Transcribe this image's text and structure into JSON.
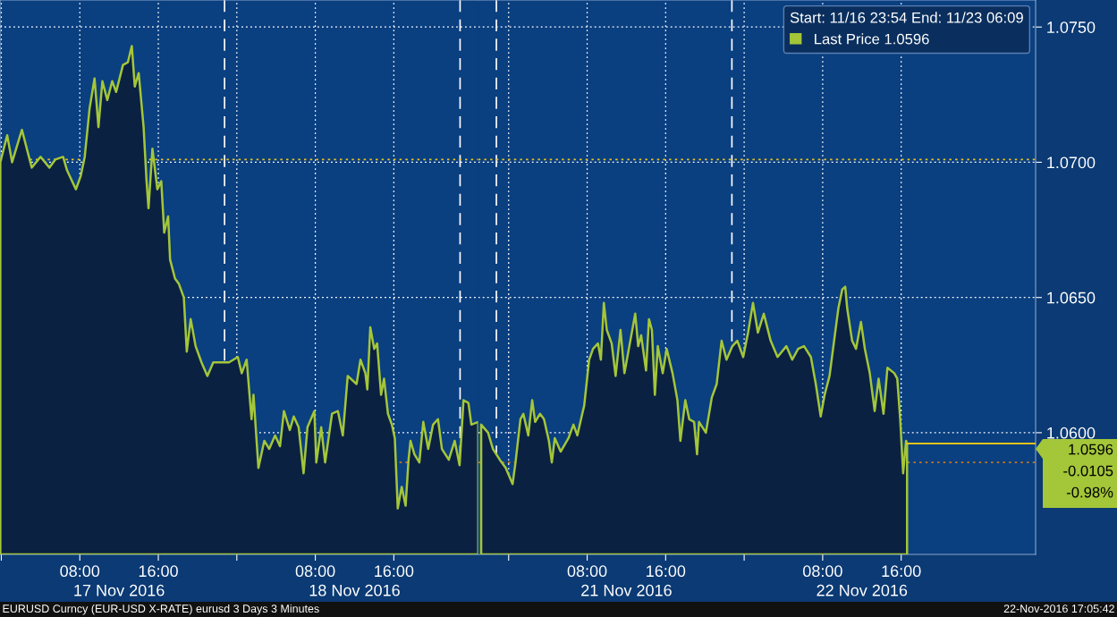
{
  "chart_data": [
    {
      "type": "area",
      "tick_labels": "x",
      "annotations": [
        "EURUSD Curncy (EUR-USD X-RATE) eurusd 3 Days 3 Minutes"
      ],
      "series": [
        {
          "color": "#a4c639",
          "x": [
            "2016-11-16T23:54",
            "2016-11-17T00:36",
            "2016-11-17T01:06",
            "2016-11-17T02:06",
            "2016-11-17T03:06",
            "2016-11-17T04:00",
            "2016-11-17T04:54",
            "2016-11-17T05:30",
            "2016-11-17T06:18",
            "2016-11-17T06:42",
            "2016-11-17T07:36",
            "2016-11-17T08:06",
            "2016-11-17T08:30",
            "2016-11-17T09:00",
            "2016-11-17T09:30",
            "2016-11-17T09:54",
            "2016-11-17T10:18",
            "2016-11-17T10:48",
            "2016-11-17T11:18",
            "2016-11-17T11:42",
            "2016-11-17T12:24",
            "2016-11-17T12:54",
            "2016-11-17T13:18",
            "2016-11-17T13:36",
            "2016-11-17T14:00",
            "2016-11-17T14:30",
            "2016-11-17T14:48",
            "2016-11-17T15:00",
            "2016-11-17T15:24",
            "2016-11-17T15:54",
            "2016-11-17T16:18",
            "2016-11-17T16:36",
            "2016-11-17T17:00",
            "2016-11-17T17:12",
            "2016-11-17T17:42",
            "2016-11-17T18:06",
            "2016-11-17T18:36",
            "2016-11-17T18:54",
            "2016-11-17T19:18",
            "2016-11-17T19:48",
            "2016-11-17T20:24",
            "2016-11-17T21:00",
            "2016-11-17T21:36",
            "2016-11-17T22:18",
            "2016-11-17T23:12",
            "2016-11-18T00:06",
            "2016-11-18T00:30",
            "2016-11-18T01:00",
            "2016-11-18T01:30",
            "2016-11-18T01:42",
            "2016-11-18T02:12",
            "2016-11-18T02:48",
            "2016-11-18T03:18",
            "2016-11-18T03:54",
            "2016-11-18T04:24",
            "2016-11-18T04:48",
            "2016-11-18T05:24",
            "2016-11-18T05:48",
            "2016-11-18T06:18",
            "2016-11-18T06:48",
            "2016-11-18T07:12",
            "2016-11-18T07:54",
            "2016-11-18T08:06",
            "2016-11-18T08:36",
            "2016-11-18T09:00",
            "2016-11-18T09:42",
            "2016-11-18T10:18",
            "2016-11-18T10:48",
            "2016-11-18T11:18",
            "2016-11-18T12:12",
            "2016-11-18T12:36",
            "2016-11-18T13:06",
            "2016-11-18T13:18",
            "2016-11-18T13:36",
            "2016-11-18T14:00",
            "2016-11-18T14:18",
            "2016-11-18T14:42",
            "2016-11-18T15:00",
            "2016-11-18T15:24",
            "2016-11-18T15:48",
            "2016-11-18T16:06",
            "2016-11-18T16:24",
            "2016-11-18T16:48",
            "2016-11-18T17:12",
            "2016-11-18T17:30",
            "2016-11-18T17:42",
            "2016-11-18T18:06",
            "2016-11-18T18:36",
            "2016-11-18T19:00",
            "2016-11-18T19:30",
            "2016-11-18T20:00",
            "2016-11-18T20:30",
            "2016-11-18T20:54",
            "2016-11-18T21:36",
            "2016-11-18T22:12",
            "2016-11-18T22:42",
            "2016-11-18T23:06",
            "2016-11-18T23:36",
            "2016-11-18T23:54",
            "2016-11-19T00:36"
          ],
          "values": [
            1.07,
            1.071,
            1.07,
            1.0712,
            1.0698,
            1.0702,
            1.0698,
            1.0701,
            1.0702,
            1.0697,
            1.069,
            1.0695,
            1.0702,
            1.072,
            1.0731,
            1.0713,
            1.073,
            1.0723,
            1.073,
            1.0726,
            1.0736,
            1.0737,
            1.0743,
            1.0728,
            1.0733,
            1.0713,
            1.0693,
            1.0683,
            1.0705,
            1.069,
            1.0693,
            1.0674,
            1.068,
            1.0664,
            1.0657,
            1.0655,
            1.065,
            1.063,
            1.0642,
            1.0632,
            1.0626,
            1.0621,
            1.0626,
            1.0626,
            1.0626,
            1.0628,
            1.0622,
            1.0627,
            1.0605,
            1.0614,
            1.0587,
            1.0597,
            1.0594,
            1.0599,
            1.0595,
            1.0608,
            1.0601,
            1.0606,
            1.0602,
            1.0585,
            1.0602,
            1.0608,
            1.0589,
            1.0602,
            1.0589,
            1.0607,
            1.0608,
            1.0599,
            1.0621,
            1.0618,
            1.0627,
            1.0622,
            1.0616,
            1.0639,
            1.0631,
            1.0633,
            1.0614,
            1.062,
            1.0607,
            1.0603,
            1.0598,
            1.0572,
            1.058,
            1.0573,
            1.059,
            1.0597,
            1.0592,
            1.0589,
            1.0604,
            1.0594,
            1.0603,
            1.0605,
            1.0594,
            1.059,
            1.0597,
            1.0588,
            1.0612,
            1.0611,
            1.0603,
            1.0604
          ]
        }
      ],
      "xlim": [
        "2016-11-16T23:52",
        "2016-11-19T00:36"
      ],
      "ylim": [
        1.0555,
        1.076
      ],
      "xticks": [
        {
          "value": "2016-11-17T00:00",
          "label": null
        },
        {
          "value": "2016-11-17T08:00",
          "label": "08:00"
        },
        {
          "value": "2016-11-17T16:00",
          "label": "16:00"
        },
        {
          "value": "2016-11-18T00:00",
          "label": null
        },
        {
          "value": "2016-11-18T08:00",
          "label": "08:00"
        },
        {
          "value": "2016-11-18T16:00",
          "label": "16:00"
        }
      ],
      "x2lim": [
        "2016-11-16T23:52",
        "2016-11-19T00:36"
      ],
      "x2ticks": [
        {
          "value": "2016-11-17T12:00",
          "label": "17 Nov 2016"
        },
        {
          "value": "2016-11-18T12:00",
          "label": "18 Nov 2016"
        }
      ],
      "yticks": [
        {
          "value": 1.06,
          "label": null
        },
        {
          "value": 1.065,
          "label": null
        },
        {
          "value": 1.07,
          "label": null
        },
        {
          "value": 1.075,
          "label": null
        }
      ],
      "ref_lines": [
        {
          "axis": "x",
          "value": "2016-11-17T22:45",
          "color": "#ffffff",
          "line_style": "dashed"
        },
        {
          "axis": "x",
          "value": "2016-11-18T22:45",
          "color": "#ffffff",
          "line_style": "dashed"
        },
        {
          "axis": "y",
          "value": 1.0701,
          "color": "#e8c21a",
          "line_style": "dotted"
        },
        {
          "axis": "y",
          "value": 1.0589,
          "color": "#c8781e",
          "line_style": "dotted"
        }
      ],
      "grid": true
    },
    {
      "type": "area",
      "legend_title": "Start: 11/16 23:54 End: 11/23 06:09",
      "annotations": [
        "1.0596",
        "-0.0105",
        "-0.98%",
        "22-Nov-2016 17:05:42"
      ],
      "series": [
        {
          "name": "Last Price 1.0596",
          "color": "#a4c639",
          "x": [
            "2016-11-20T21:12",
            "2016-11-20T21:54",
            "2016-11-20T22:24",
            "2016-11-20T23:06",
            "2016-11-20T23:42",
            "2016-11-21T00:24",
            "2016-11-21T00:42",
            "2016-11-21T01:12",
            "2016-11-21T01:30",
            "2016-11-21T02:00",
            "2016-11-21T02:24",
            "2016-11-21T02:42",
            "2016-11-21T03:12",
            "2016-11-21T03:36",
            "2016-11-21T04:06",
            "2016-11-21T04:24",
            "2016-11-21T04:42",
            "2016-11-21T05:18",
            "2016-11-21T06:06",
            "2016-11-21T06:36",
            "2016-11-21T07:00",
            "2016-11-21T07:30",
            "2016-11-21T07:42",
            "2016-11-21T08:12",
            "2016-11-21T08:36",
            "2016-11-21T09:06",
            "2016-11-21T09:24",
            "2016-11-21T09:42",
            "2016-11-21T10:00",
            "2016-11-21T10:30",
            "2016-11-21T10:54",
            "2016-11-21T11:24",
            "2016-11-21T11:48",
            "2016-11-21T12:30",
            "2016-11-21T12:54",
            "2016-11-21T13:12",
            "2016-11-21T13:30",
            "2016-11-21T14:00",
            "2016-11-21T14:18",
            "2016-11-21T14:36",
            "2016-11-21T14:54",
            "2016-11-21T15:12",
            "2016-11-21T15:42",
            "2016-11-21T16:06",
            "2016-11-21T16:42",
            "2016-11-21T17:12",
            "2016-11-21T17:30",
            "2016-11-21T18:00",
            "2016-11-21T18:24",
            "2016-11-21T18:54",
            "2016-11-21T19:12",
            "2016-11-21T19:24",
            "2016-11-21T20:06",
            "2016-11-21T20:42",
            "2016-11-21T21:12",
            "2016-11-21T21:42",
            "2016-11-21T22:12",
            "2016-11-21T22:48",
            "2016-11-21T23:18",
            "2016-11-21T23:54",
            "2016-11-22T00:24",
            "2016-11-22T00:54",
            "2016-11-22T01:24",
            "2016-11-22T02:00",
            "2016-11-22T02:42",
            "2016-11-22T03:24",
            "2016-11-22T04:18",
            "2016-11-22T04:54",
            "2016-11-22T05:30",
            "2016-11-22T06:06",
            "2016-11-22T06:48",
            "2016-11-22T07:18",
            "2016-11-22T07:48",
            "2016-11-22T08:12",
            "2016-11-22T08:42",
            "2016-11-22T09:12",
            "2016-11-22T09:36",
            "2016-11-22T10:00",
            "2016-11-22T10:18",
            "2016-11-22T10:30",
            "2016-11-22T11:00",
            "2016-11-22T11:24",
            "2016-11-22T11:54",
            "2016-11-22T12:18",
            "2016-11-22T12:48",
            "2016-11-22T13:18",
            "2016-11-22T13:42",
            "2016-11-22T14:12",
            "2016-11-22T14:36",
            "2016-11-22T15:18",
            "2016-11-22T15:36",
            "2016-11-22T15:54",
            "2016-11-22T16:12",
            "2016-11-22T16:30",
            "2016-11-22T16:36"
          ],
          "values": [
            1.0603,
            1.06,
            1.0594,
            1.059,
            1.0587,
            1.0581,
            1.0589,
            1.0605,
            1.0607,
            1.0599,
            1.0612,
            1.0604,
            1.0607,
            1.0605,
            1.0597,
            1.0589,
            1.0598,
            1.0593,
            1.0598,
            1.0603,
            1.0599,
            1.0607,
            1.061,
            1.0627,
            1.0631,
            1.0633,
            1.0627,
            1.0648,
            1.0638,
            1.0633,
            1.0621,
            1.0638,
            1.0622,
            1.0636,
            1.0644,
            1.0632,
            1.0636,
            1.0623,
            1.0642,
            1.0638,
            1.0614,
            1.0632,
            1.0622,
            1.0631,
            1.0622,
            1.0612,
            1.0597,
            1.0612,
            1.0605,
            1.0604,
            1.0592,
            1.0604,
            1.06,
            1.0613,
            1.0618,
            1.0634,
            1.0627,
            1.0632,
            1.0634,
            1.0628,
            1.0637,
            1.0648,
            1.0637,
            1.0644,
            1.0634,
            1.0628,
            1.0632,
            1.0627,
            1.0631,
            1.0632,
            1.0628,
            1.0618,
            1.0606,
            1.0614,
            1.0621,
            1.0635,
            1.0646,
            1.0653,
            1.0654,
            1.0646,
            1.0634,
            1.0631,
            1.0641,
            1.0631,
            1.0622,
            1.0608,
            1.062,
            1.0607,
            1.0624,
            1.0622,
            1.062,
            1.0605,
            1.0585,
            1.0597,
            1.0596
          ]
        },
        {
          "type": "line",
          "color": "#e8c21a",
          "x": [
            "2016-11-22T16:36",
            "2016-11-23T05:42"
          ],
          "values": [
            1.0596,
            1.0596
          ]
        }
      ],
      "xlim": [
        "2016-11-20T20:54",
        "2016-11-23T05:42"
      ],
      "ylim": [
        1.0555,
        1.076
      ],
      "xticks": [
        {
          "value": "2016-11-21T00:00",
          "label": null
        },
        {
          "value": "2016-11-21T08:00",
          "label": "08:00"
        },
        {
          "value": "2016-11-21T16:00",
          "label": "16:00"
        },
        {
          "value": "2016-11-22T00:00",
          "label": null
        },
        {
          "value": "2016-11-22T08:00",
          "label": "08:00"
        },
        {
          "value": "2016-11-22T16:00",
          "label": "16:00"
        }
      ],
      "x2lim": [
        "2016-11-20T20:54",
        "2016-11-23T05:42"
      ],
      "x2ticks": [
        {
          "value": "2016-11-21T12:00",
          "label": "21 Nov 2016"
        },
        {
          "value": "2016-11-22T12:00",
          "label": "22 Nov 2016"
        }
      ],
      "yticks": [
        {
          "value": 1.06,
          "label": "1.0600"
        },
        {
          "value": 1.065,
          "label": "1.0650"
        },
        {
          "value": 1.07,
          "label": "1.0700"
        },
        {
          "value": 1.075,
          "label": "1.0750"
        }
      ],
      "ref_lines": [
        {
          "axis": "x",
          "value": "2016-11-20T22:45",
          "color": "#ffffff",
          "line_style": "dashed"
        },
        {
          "axis": "x",
          "value": "2016-11-21T22:45",
          "color": "#ffffff",
          "line_style": "dashed"
        },
        {
          "axis": "y",
          "value": 1.0701,
          "color": "#e8c21a",
          "line_style": "dotted"
        },
        {
          "axis": "y",
          "value": 1.0589,
          "color": "#c8781e",
          "line_style": "dotted"
        }
      ],
      "grid": true,
      "legend": "top right"
    }
  ]
}
